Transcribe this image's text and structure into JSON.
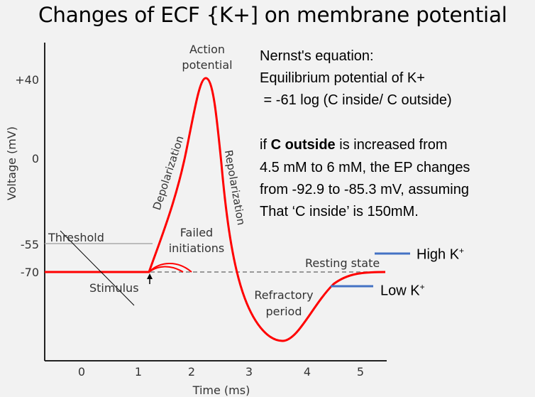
{
  "title": "Changes of ECF {K+] on membrane potential",
  "notes": {
    "line1": "Nernst's equation:",
    "line2": "Equilibrium potential of K+",
    "line3": " = -61 log (C inside/ C outside)",
    "line4_pre": "if ",
    "line4_bold": "C outside",
    "line4_post": " is increased from",
    "line5": "4.5 mM to 6 mM, the EP changes",
    "line6": "from -92.9 to -85.3 mV, assuming",
    "line7": "That ‘C inside’ is 150mM."
  },
  "legend": {
    "high": "High K",
    "low": "Low K",
    "sup": "+",
    "color": "#4472c4"
  },
  "diagram": {
    "ylabel": "Voltage (mV)",
    "xlabel": "Time (ms)",
    "yticks": [
      "+40",
      "0",
      "-55",
      "-70"
    ],
    "xticks": [
      "0",
      "1",
      "2",
      "3",
      "4",
      "5"
    ],
    "labels": {
      "action1": "Action",
      "action2": "potential",
      "depolarization": "Depolarization",
      "repolarization": "Repolarization",
      "threshold": "Threshold",
      "failed1": "Failed",
      "failed2": "initiations",
      "stimulus": "Stimulus",
      "resting": "Resting state",
      "refractory1": "Refractory",
      "refractory2": "period"
    },
    "curve_color": "#ff0000"
  }
}
